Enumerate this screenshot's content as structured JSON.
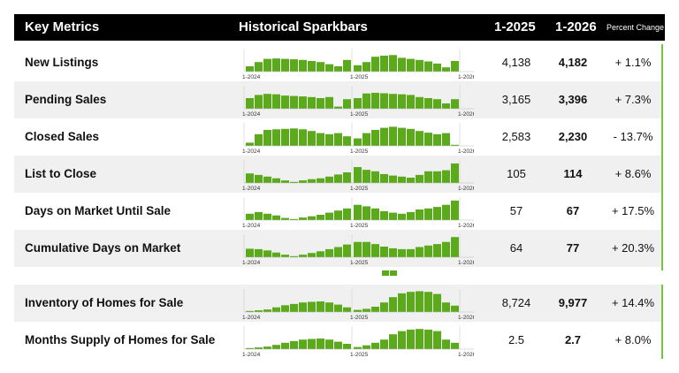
{
  "header": {
    "key_metrics": "Key Metrics",
    "historical_sparkbars": "Historical Sparkbars",
    "prev_period": "1-2025",
    "curr_period": "1-2026",
    "percent_change": "Percent Change"
  },
  "axis_labels": [
    "1-2024",
    "1-2025",
    "1-2026"
  ],
  "bar_color": "#5aaa1c",
  "accent_line_color": "#7ac142",
  "rows": [
    {
      "label": "New Listings",
      "prev": "4,138",
      "curr": "4,182",
      "pct": "+ 1.1%",
      "bars": [
        0.25,
        0.45,
        0.6,
        0.62,
        0.6,
        0.58,
        0.55,
        0.5,
        0.45,
        0.35,
        0.25,
        0.55,
        0.3,
        0.45,
        0.7,
        0.75,
        0.78,
        0.65,
        0.6,
        0.55,
        0.48,
        0.38,
        0.2,
        0.5
      ]
    },
    {
      "label": "Pending Sales",
      "prev": "3,165",
      "curr": "3,396",
      "pct": "+ 7.3%",
      "bars": [
        0.5,
        0.65,
        0.7,
        0.68,
        0.62,
        0.6,
        0.58,
        0.55,
        0.5,
        0.55,
        0.1,
        0.45,
        0.5,
        0.72,
        0.75,
        0.73,
        0.7,
        0.68,
        0.65,
        0.55,
        0.5,
        0.45,
        0.25,
        0.45
      ]
    },
    {
      "label": "Closed Sales",
      "prev": "2,583",
      "curr": "2,230",
      "pct": "- 13.7%",
      "bars": [
        0.15,
        0.55,
        0.75,
        0.78,
        0.8,
        0.82,
        0.78,
        0.7,
        0.6,
        0.55,
        0.6,
        0.45,
        0.35,
        0.6,
        0.75,
        0.85,
        0.9,
        0.85,
        0.8,
        0.7,
        0.62,
        0.55,
        0.6,
        0.05
      ]
    },
    {
      "label": "List to Close",
      "prev": "105",
      "curr": "114",
      "pct": "+ 8.6%",
      "bars": [
        0.45,
        0.38,
        0.3,
        0.22,
        0.12,
        0.05,
        0.12,
        0.18,
        0.22,
        0.3,
        0.4,
        0.5,
        0.75,
        0.62,
        0.55,
        0.42,
        0.35,
        0.3,
        0.25,
        0.38,
        0.55,
        0.55,
        0.6,
        0.92
      ]
    },
    {
      "label": "Days on Market Until Sale",
      "prev": "57",
      "curr": "67",
      "pct": "+ 17.5%",
      "bars": [
        0.3,
        0.38,
        0.3,
        0.22,
        0.1,
        0.05,
        0.12,
        0.18,
        0.25,
        0.35,
        0.45,
        0.55,
        0.72,
        0.65,
        0.55,
        0.42,
        0.35,
        0.3,
        0.38,
        0.5,
        0.55,
        0.62,
        0.72,
        0.92
      ]
    },
    {
      "label": "Cumulative Days on Market",
      "prev": "64",
      "curr": "77",
      "pct": "+ 20.3%",
      "bars": [
        0.4,
        0.38,
        0.32,
        0.22,
        0.12,
        0.05,
        0.12,
        0.2,
        0.28,
        0.38,
        0.48,
        0.6,
        0.72,
        0.72,
        0.62,
        0.5,
        0.42,
        0.38,
        0.38,
        0.48,
        0.55,
        0.62,
        0.72,
        0.95
      ]
    },
    {
      "label": "Inventory of Homes for Sale",
      "prev": "8,724",
      "curr": "9,977",
      "pct": "+ 14.4%",
      "bars": [
        0.05,
        0.08,
        0.12,
        0.22,
        0.32,
        0.38,
        0.45,
        0.48,
        0.5,
        0.45,
        0.35,
        0.22,
        0.1,
        0.15,
        0.25,
        0.45,
        0.7,
        0.88,
        0.95,
        0.98,
        0.95,
        0.85,
        0.45,
        0.3
      ]
    },
    {
      "label": "Months Supply of Homes for Sale",
      "prev": "2.5",
      "curr": "2.7",
      "pct": "+ 8.0%",
      "bars": [
        0.05,
        0.08,
        0.12,
        0.2,
        0.3,
        0.38,
        0.45,
        0.48,
        0.5,
        0.45,
        0.35,
        0.25,
        0.1,
        0.18,
        0.3,
        0.45,
        0.7,
        0.85,
        0.92,
        0.95,
        0.92,
        0.85,
        0.45,
        0.3
      ]
    }
  ]
}
